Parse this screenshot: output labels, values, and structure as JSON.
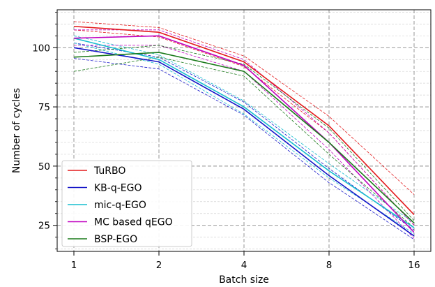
{
  "chart_data": {
    "type": "line",
    "xlabel": "Batch size",
    "ylabel": "Number of cycles",
    "x": [
      1,
      2,
      4,
      8,
      16
    ],
    "x_tick_labels": [
      "1",
      "2",
      "4",
      "8",
      "16"
    ],
    "x_scale": "log2",
    "y_ticks": [
      25,
      50,
      75,
      100
    ],
    "ylim": [
      14,
      116
    ],
    "grid": true,
    "legend_position": "lower-left",
    "series": [
      {
        "name": "TuRBO",
        "color": "#e31a1c",
        "values": [
          109,
          106.5,
          94,
          67,
          29.5
        ],
        "upper": [
          111,
          108.5,
          96.5,
          71,
          38
        ],
        "lower": [
          107.5,
          104.5,
          92,
          64,
          25
        ]
      },
      {
        "name": "KB-q-EGO",
        "color": "#1515c8",
        "values": [
          100,
          94,
          74,
          46,
          20.5
        ],
        "upper": [
          102,
          96,
          77,
          49,
          23
        ],
        "lower": [
          95.5,
          91,
          71.5,
          43,
          19
        ]
      },
      {
        "name": "mic-q-EGO",
        "color": "#17becf",
        "values": [
          104,
          95,
          75,
          48,
          24
        ],
        "upper": [
          105,
          97,
          77.5,
          51,
          26
        ],
        "lower": [
          102,
          93,
          72,
          45,
          21.5
        ]
      },
      {
        "name": "MC based qEGO",
        "color": "#c000c0",
        "values": [
          104,
          105,
          92.5,
          60,
          22
        ],
        "upper": [
          107.5,
          107.5,
          95,
          64,
          25
        ],
        "lower": [
          101,
          101,
          90,
          57,
          19.5
        ]
      },
      {
        "name": "BSP-EGO",
        "color": "#1a7a1a",
        "values": [
          96,
          98,
          90,
          60,
          26
        ],
        "upper": [
          98,
          101,
          93,
          66,
          27
        ],
        "lower": [
          90,
          96,
          88,
          55,
          24
        ]
      }
    ]
  }
}
